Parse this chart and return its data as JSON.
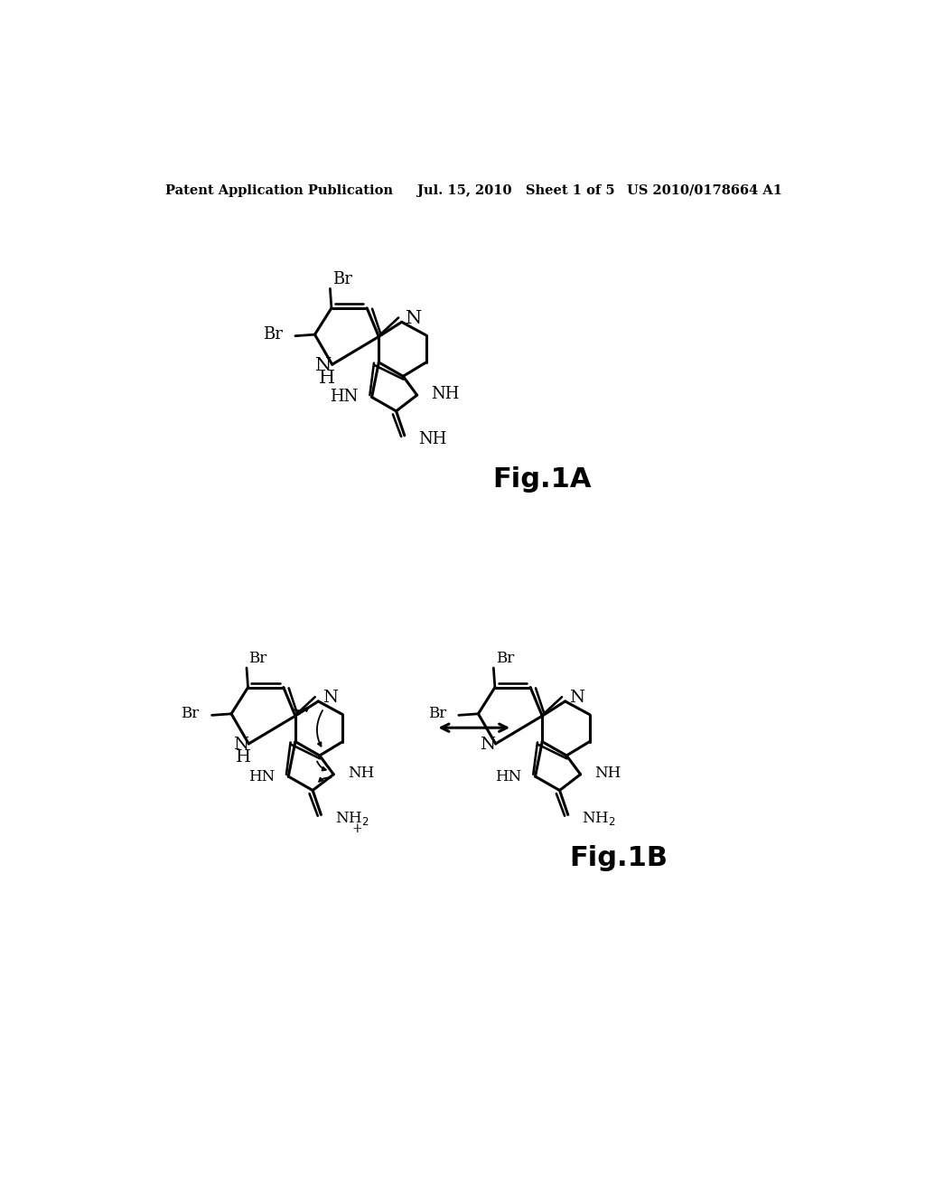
{
  "background_color": "#ffffff",
  "header_left": "Patent Application Publication",
  "header_center": "Jul. 15, 2010   Sheet 1 of 5",
  "header_right": "US 2010/0178664 A1",
  "header_fontsize": 10.5,
  "fig1A_label": "Fig.1A",
  "fig1B_label": "Fig.1B"
}
